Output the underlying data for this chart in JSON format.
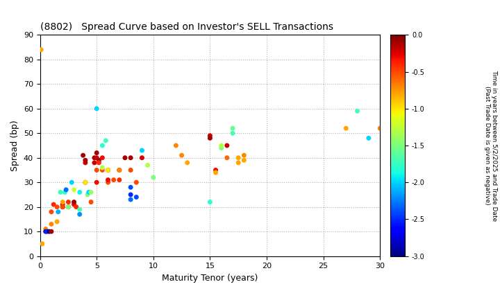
{
  "title": "(8802)   Spread Curve based on Investor's SELL Transactions",
  "xlabel": "Maturity Tenor (years)",
  "ylabel": "Spread (bp)",
  "colorbar_label_line1": "Time in years between 5/2/2025 and Trade Date",
  "colorbar_label_line2": "(Past Trade Date is given as negative)",
  "xlim": [
    0,
    30
  ],
  "ylim": [
    0,
    90
  ],
  "xticks": [
    0,
    5,
    10,
    15,
    20,
    25,
    30
  ],
  "yticks": [
    0,
    10,
    20,
    30,
    40,
    50,
    60,
    70,
    80,
    90
  ],
  "cmap_min": -3.0,
  "cmap_max": 0.0,
  "marker_size": 25,
  "points": [
    [
      0.1,
      84,
      -0.8
    ],
    [
      0.2,
      5,
      -0.8
    ],
    [
      0.5,
      11,
      -0.7
    ],
    [
      0.5,
      10,
      -2.8
    ],
    [
      0.6,
      10,
      -2.5
    ],
    [
      0.8,
      10,
      -2.9
    ],
    [
      1.0,
      10,
      -0.1
    ],
    [
      1.0,
      18,
      -0.5
    ],
    [
      1.0,
      13,
      -0.7
    ],
    [
      1.2,
      21,
      -0.4
    ],
    [
      1.5,
      14,
      -0.8
    ],
    [
      1.5,
      20,
      -0.5
    ],
    [
      1.6,
      18,
      -2.1
    ],
    [
      1.8,
      26,
      -1.7
    ],
    [
      2.0,
      21,
      -0.3
    ],
    [
      2.0,
      20,
      -0.1
    ],
    [
      2.0,
      20,
      -0.5
    ],
    [
      2.0,
      22,
      -0.8
    ],
    [
      2.2,
      26,
      -1.8
    ],
    [
      2.3,
      27,
      -2.3
    ],
    [
      2.5,
      22,
      -0.4
    ],
    [
      2.5,
      20,
      -0.2
    ],
    [
      2.5,
      20,
      -1.5
    ],
    [
      2.8,
      30,
      -2.0
    ],
    [
      3.0,
      21,
      -0.3
    ],
    [
      3.0,
      22,
      -0.1
    ],
    [
      3.0,
      27,
      -1.2
    ],
    [
      3.2,
      20,
      -0.4
    ],
    [
      3.5,
      17,
      -2.2
    ],
    [
      3.5,
      19,
      -1.7
    ],
    [
      3.5,
      26,
      -1.9
    ],
    [
      3.8,
      41,
      -0.1
    ],
    [
      4.0,
      30,
      -0.3
    ],
    [
      4.0,
      30,
      -1.0
    ],
    [
      4.0,
      38,
      -0.2
    ],
    [
      4.0,
      39,
      -0.1
    ],
    [
      4.2,
      25,
      -1.5
    ],
    [
      4.3,
      26,
      -2.0
    ],
    [
      4.5,
      22,
      -0.5
    ],
    [
      4.5,
      26,
      -1.4
    ],
    [
      4.8,
      38,
      -0.2
    ],
    [
      4.8,
      40,
      -0.1
    ],
    [
      5.0,
      30,
      -0.3
    ],
    [
      5.0,
      35,
      -0.5
    ],
    [
      5.0,
      40,
      -0.2
    ],
    [
      5.0,
      42,
      -0.1
    ],
    [
      5.0,
      60,
      -2.0
    ],
    [
      5.2,
      39,
      -0.1
    ],
    [
      5.2,
      38,
      -0.4
    ],
    [
      5.5,
      35,
      -0.5
    ],
    [
      5.5,
      36,
      -1.3
    ],
    [
      5.5,
      40,
      -0.3
    ],
    [
      5.5,
      45,
      -1.8
    ],
    [
      5.8,
      47,
      -1.7
    ],
    [
      6.0,
      30,
      -0.5
    ],
    [
      6.0,
      31,
      -0.3
    ],
    [
      6.0,
      35,
      -0.2
    ],
    [
      6.0,
      35,
      -1.0
    ],
    [
      6.5,
      31,
      -0.5
    ],
    [
      7.0,
      31,
      -0.4
    ],
    [
      7.0,
      35,
      -0.3
    ],
    [
      7.0,
      35,
      -0.7
    ],
    [
      7.5,
      40,
      -0.1
    ],
    [
      8.0,
      23,
      -2.3
    ],
    [
      8.0,
      25,
      -2.5
    ],
    [
      8.0,
      28,
      -2.4
    ],
    [
      8.0,
      35,
      -0.5
    ],
    [
      8.0,
      40,
      -0.1
    ],
    [
      8.5,
      24,
      -2.4
    ],
    [
      8.5,
      30,
      -0.5
    ],
    [
      9.0,
      43,
      -2.0
    ],
    [
      9.0,
      40,
      -0.2
    ],
    [
      9.5,
      37,
      -1.3
    ],
    [
      10.0,
      32,
      -1.5
    ],
    [
      12.0,
      45,
      -0.7
    ],
    [
      12.5,
      41,
      -0.7
    ],
    [
      13.0,
      38,
      -0.8
    ],
    [
      15.0,
      49,
      -0.2
    ],
    [
      15.0,
      48,
      -0.1
    ],
    [
      15.0,
      22,
      -1.8
    ],
    [
      15.5,
      35,
      -0.3
    ],
    [
      15.5,
      34,
      -0.8
    ],
    [
      16.0,
      44,
      -1.5
    ],
    [
      16.0,
      45,
      -1.3
    ],
    [
      16.5,
      45,
      -0.2
    ],
    [
      16.5,
      40,
      -0.6
    ],
    [
      17.0,
      50,
      -1.7
    ],
    [
      17.0,
      52,
      -1.6
    ],
    [
      17.5,
      38,
      -0.8
    ],
    [
      17.5,
      40,
      -0.8
    ],
    [
      18.0,
      39,
      -0.8
    ],
    [
      18.0,
      41,
      -0.7
    ],
    [
      27.0,
      52,
      -0.8
    ],
    [
      28.0,
      59,
      -1.7
    ],
    [
      29.0,
      48,
      -2.0
    ],
    [
      30.0,
      52,
      -0.7
    ]
  ]
}
